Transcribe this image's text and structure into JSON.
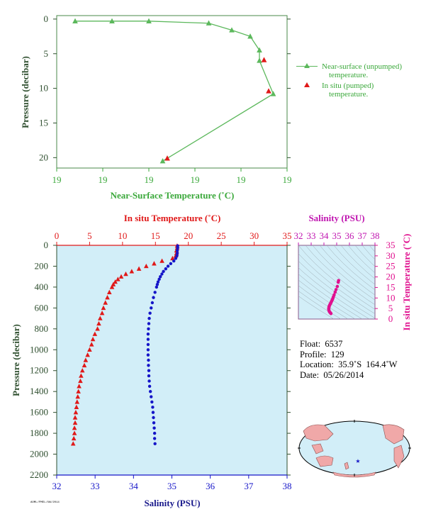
{
  "colors": {
    "green": "#3aa83a",
    "green_line": "#5cb85c",
    "red": "#e01919",
    "blue": "#1515c8",
    "magenta": "#e0118f",
    "navy": "#1a1a8c",
    "axis_dark": "#2f4f2f",
    "plot_bg": "#d2eef8"
  },
  "chart_data": [
    {
      "id": "near-surface",
      "type": "line",
      "xlabel": "Near-Surface Temperature (˚C)",
      "ylabel": "Pressure (decibar)",
      "xlim": [
        0,
        5
      ],
      "x_tick_labels": [
        "19",
        "19",
        "19",
        "19",
        "19",
        "19"
      ],
      "ylim": [
        21.5,
        -0.5
      ],
      "y_ticks": [
        0,
        5,
        10,
        15,
        20
      ],
      "series": [
        {
          "name": "Near-surface (unpumped) temperature.",
          "marker": "triangle",
          "color": "#5cb85c",
          "points": [
            [
              0.4,
              0.3
            ],
            [
              1.2,
              0.3
            ],
            [
              2.0,
              0.3
            ],
            [
              3.3,
              0.6
            ],
            [
              3.8,
              1.6
            ],
            [
              4.2,
              2.5
            ],
            [
              4.4,
              4.5
            ],
            [
              4.4,
              6.0
            ],
            [
              4.7,
              10.8
            ],
            [
              2.3,
              20.5
            ]
          ]
        },
        {
          "name": "In situ (pumped) temperature.",
          "marker": "triangle",
          "color": "#e01919",
          "points": [
            [
              4.5,
              5.9
            ],
            [
              4.6,
              10.4
            ],
            [
              2.4,
              20.1
            ]
          ]
        }
      ],
      "legend": [
        {
          "label_line1": "Near-surface (unpumped)",
          "label_line2": "temperature."
        },
        {
          "label_line1": "In situ (pumped)",
          "label_line2": "temperature."
        }
      ],
      "legend_position": "right"
    },
    {
      "id": "profile",
      "type": "scatter",
      "top_xlabel": "In situ Temperature (˚C)",
      "bottom_xlabel": "Salinity (PSU)",
      "ylabel": "Pressure (decibar)",
      "temperature_xlim": [
        0,
        35
      ],
      "temperature_ticks": [
        0,
        5,
        10,
        15,
        20,
        25,
        30,
        35
      ],
      "salinity_xlim": [
        32,
        38
      ],
      "salinity_ticks": [
        32,
        33,
        34,
        35,
        36,
        37,
        38
      ],
      "ylim": [
        2200,
        0
      ],
      "y_ticks": [
        0,
        200,
        400,
        600,
        800,
        1000,
        1200,
        1400,
        1600,
        1800,
        2000,
        2200
      ],
      "temperature_series": {
        "name": "In situ Temperature",
        "pressure": [
          5,
          25,
          50,
          75,
          100,
          125,
          150,
          175,
          200,
          225,
          250,
          275,
          300,
          325,
          350,
          375,
          400,
          450,
          500,
          550,
          600,
          650,
          700,
          750,
          800,
          850,
          900,
          950,
          1000,
          1050,
          1100,
          1150,
          1200,
          1250,
          1300,
          1350,
          1400,
          1450,
          1500,
          1550,
          1600,
          1650,
          1700,
          1750,
          1800,
          1850,
          1900
        ],
        "values": [
          18.3,
          18.3,
          18.2,
          18.2,
          18.1,
          17.6,
          16.0,
          14.8,
          13.6,
          12.5,
          11.4,
          10.5,
          9.8,
          9.3,
          8.9,
          8.6,
          8.4,
          8.0,
          7.7,
          7.4,
          7.1,
          6.9,
          6.6,
          6.4,
          6.2,
          5.8,
          5.5,
          5.3,
          5.0,
          4.7,
          4.4,
          4.2,
          3.9,
          3.7,
          3.6,
          3.4,
          3.3,
          3.2,
          3.1,
          3.0,
          2.9,
          2.8,
          2.8,
          2.7,
          2.7,
          2.6,
          2.5
        ]
      },
      "salinity_series": {
        "name": "Salinity",
        "pressure": [
          5,
          25,
          50,
          75,
          100,
          125,
          150,
          175,
          200,
          225,
          250,
          275,
          300,
          325,
          350,
          375,
          400,
          450,
          500,
          550,
          600,
          650,
          700,
          750,
          800,
          850,
          900,
          950,
          1000,
          1050,
          1100,
          1150,
          1200,
          1250,
          1300,
          1350,
          1400,
          1450,
          1500,
          1550,
          1600,
          1650,
          1700,
          1750,
          1800,
          1850,
          1900
        ],
        "values": [
          35.15,
          35.15,
          35.14,
          35.14,
          35.13,
          35.1,
          35.05,
          34.97,
          34.9,
          34.84,
          34.78,
          34.74,
          34.7,
          34.67,
          34.64,
          34.62,
          34.6,
          34.56,
          34.52,
          34.49,
          34.46,
          34.43,
          34.41,
          34.4,
          34.39,
          34.38,
          34.38,
          34.38,
          34.38,
          34.38,
          34.39,
          34.39,
          34.4,
          34.4,
          34.41,
          34.42,
          34.44,
          34.46,
          34.48,
          34.5,
          34.51,
          34.52,
          34.53,
          34.54,
          34.55,
          34.55,
          34.56
        ]
      }
    },
    {
      "id": "ts-diagram",
      "type": "scatter",
      "top_xlabel": "Salinity (PSU)",
      "right_ylabel": "In situ Temperature (˚C)",
      "salinity_xlim": [
        32,
        38
      ],
      "salinity_ticks": [
        32,
        33,
        34,
        35,
        36,
        37,
        38
      ],
      "temperature_ylim": [
        0,
        35
      ],
      "temperature_ticks": [
        0,
        5,
        10,
        15,
        20,
        25,
        30,
        35
      ],
      "points_salinity": [
        35.15,
        35.12,
        35.05,
        34.95,
        34.88,
        34.8,
        34.74,
        34.7,
        34.66,
        34.62,
        34.58,
        34.55,
        34.52,
        34.48,
        34.45,
        34.42,
        34.4,
        34.39,
        34.38,
        34.38,
        34.39,
        34.41,
        34.44,
        34.48,
        34.52,
        34.55
      ],
      "points_temperature": [
        18.3,
        17.5,
        15.5,
        14.0,
        12.8,
        11.5,
        10.5,
        9.8,
        9.2,
        8.7,
        8.2,
        7.8,
        7.4,
        7.0,
        6.6,
        6.2,
        5.8,
        5.4,
        5.0,
        4.6,
        4.2,
        3.8,
        3.4,
        3.1,
        2.9,
        2.6
      ]
    }
  ],
  "info": {
    "float_label": "Float:",
    "float_value": "6537",
    "profile_label": "Profile:",
    "profile_value": "129",
    "location_label": "Location:",
    "location_value": "35.9˚S  164.4˚W",
    "date_label": "Date:",
    "date_value": "05/26/2014"
  },
  "credit": "AOML/PMEL/UW/2014",
  "map": {
    "float_marker": "star"
  }
}
